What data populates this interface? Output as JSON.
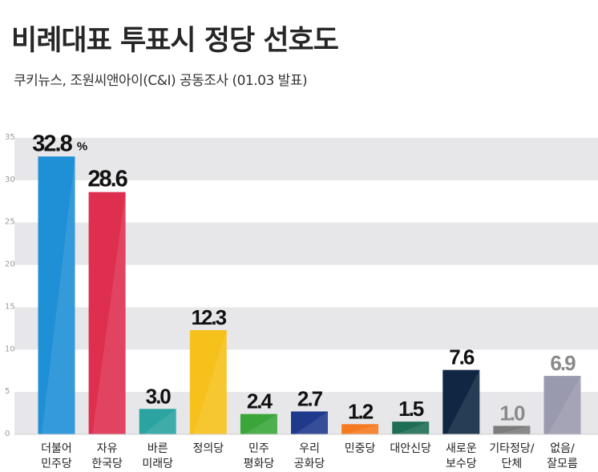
{
  "title": "비례대표 투표시 정당 선호도",
  "subtitle": "쿠키뉴스, 조원씨앤아이(C&I) 공동조사 (01.03 발표)",
  "chart_data": {
    "type": "bar",
    "title": "비례대표 투표시 정당 선호도",
    "subtitle": "쿠키뉴스, 조원씨앤아이(C&I) 공동조사 (01.03 발표)",
    "ylim": [
      0,
      35
    ],
    "yticks": [
      0,
      5,
      10,
      15,
      20,
      25,
      30,
      35
    ],
    "grid": true,
    "percent_sign": "%",
    "categories": [
      [
        "더불어",
        "민주당"
      ],
      [
        "자유",
        "한국당"
      ],
      [
        "바른",
        "미래당"
      ],
      [
        "정의당"
      ],
      [
        "민주",
        "평화당"
      ],
      [
        "우리",
        "공화당"
      ],
      [
        "민중당"
      ],
      [
        "대안신당"
      ],
      [
        "새로운",
        "보수당"
      ],
      [
        "기타정당/",
        "단체"
      ],
      [
        "없음/",
        "잘모름"
      ]
    ],
    "values": [
      32.8,
      28.6,
      3.0,
      12.3,
      2.4,
      2.7,
      1.2,
      1.5,
      7.6,
      1.0,
      6.9
    ],
    "labels": [
      "32.8",
      "28.6",
      "3.0",
      "12.3",
      "2.4",
      "2.7",
      "1.2",
      "1.5",
      "7.6",
      "1.0",
      "6.9"
    ],
    "colors": [
      "#1f8fd6",
      "#de2f4f",
      "#2ba3a1",
      "#f5c11a",
      "#3aa63a",
      "#1f3a8c",
      "#f47b20",
      "#1e6e55",
      "#0f2743",
      "#7c7c7c",
      "#9a9aae"
    ],
    "label_colors": [
      "#111111",
      "#111111",
      "#111111",
      "#111111",
      "#111111",
      "#111111",
      "#111111",
      "#111111",
      "#111111",
      "#8a8a8a",
      "#8a8a8a"
    ]
  }
}
